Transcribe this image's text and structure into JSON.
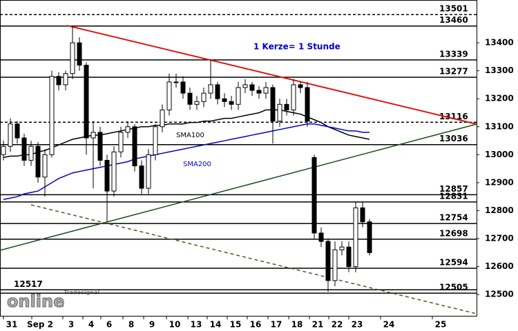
{
  "chart_data": {
    "type": "candlestick",
    "annotation": "1 Kerze= 1 Stunde",
    "logo_small": "Tradesignal",
    "logo_big": "online",
    "x_labels": [
      "31",
      "Sep 2",
      "3",
      "4",
      "6",
      "8",
      "9",
      "10",
      "13",
      "14",
      "15",
      "16",
      "17",
      "18",
      "21",
      "22",
      "23",
      "24",
      "25"
    ],
    "ylim": [
      12424,
      13553
    ],
    "yticks": [
      12500,
      12600,
      12700,
      12800,
      12900,
      13000,
      13100,
      13200,
      13300,
      13400
    ],
    "up_color": "#ffffff",
    "down_color": "#000000",
    "open": [
      13000,
      13030,
      13110,
      13060,
      12980,
      13030,
      12920,
      13000,
      13280,
      13250,
      13290,
      13400,
      13320,
      13060,
      13080,
      12980,
      12870,
      13010,
      13080,
      13100,
      12960,
      12880,
      13000,
      13100,
      13160,
      13260,
      13260,
      13220,
      13180,
      13190,
      13220,
      13250,
      13200,
      13190,
      13180,
      13240,
      13250,
      13230,
      13220,
      13240,
      13120,
      13180,
      13160,
      13250,
      13240,
      12990,
      12720,
      12690,
      12550,
      12660,
      12670,
      12600,
      12810,
      12760
    ],
    "high": [
      13050,
      13130,
      13120,
      13075,
      13050,
      13045,
      13020,
      13300,
      13295,
      13300,
      13460,
      13420,
      13330,
      13120,
      13100,
      13000,
      13030,
      13100,
      13120,
      13110,
      12980,
      13020,
      13110,
      13180,
      13290,
      13290,
      13280,
      13240,
      13210,
      13240,
      13340,
      13260,
      13220,
      13210,
      13260,
      13270,
      13260,
      13245,
      13260,
      13250,
      13200,
      13200,
      13270,
      13260,
      13260,
      13000,
      12740,
      12700,
      12690,
      12690,
      12690,
      12830,
      12830,
      12770
    ],
    "low": [
      12980,
      13010,
      13040,
      12960,
      12960,
      12900,
      12850,
      12990,
      13230,
      13230,
      13270,
      13300,
      13000,
      12880,
      12960,
      12760,
      12850,
      12990,
      13060,
      12940,
      12860,
      12860,
      12980,
      13080,
      13140,
      13240,
      13200,
      13160,
      13160,
      13170,
      13200,
      13180,
      13170,
      13160,
      13160,
      13220,
      13210,
      13200,
      13200,
      13040,
      13100,
      13140,
      13140,
      13220,
      13100,
      12700,
      12670,
      12510,
      12530,
      12640,
      12580,
      12580,
      12740,
      12640
    ],
    "close": [
      13030,
      13110,
      13060,
      12980,
      13030,
      12920,
      13000,
      13280,
      13250,
      13290,
      13400,
      13320,
      13060,
      13080,
      12980,
      12870,
      13010,
      13080,
      13100,
      12960,
      12880,
      13000,
      13100,
      13160,
      13260,
      13260,
      13220,
      13180,
      13190,
      13220,
      13250,
      13200,
      13190,
      13180,
      13240,
      13250,
      13230,
      13220,
      13240,
      13120,
      13180,
      13160,
      13250,
      13240,
      13120,
      12720,
      12690,
      12550,
      12660,
      12670,
      12600,
      12810,
      12760,
      12650
    ],
    "series": [
      {
        "name": "SMA100",
        "color": "#000000",
        "values": [
          12990,
          12995,
          12995,
          13000,
          13000,
          13010,
          13015,
          13025,
          13035,
          13045,
          13055,
          13060,
          13065,
          13070,
          13070,
          13075,
          13080,
          13085,
          13090,
          13095,
          13100,
          13100,
          13105,
          13105,
          13110,
          13110,
          13110,
          13115,
          13115,
          13120,
          13120,
          13125,
          13130,
          13130,
          13135,
          13140,
          13145,
          13150,
          13160,
          13160,
          13160,
          13155,
          13150,
          13145,
          13135,
          13125,
          13115,
          13100,
          13090,
          13080,
          13070,
          13065,
          13060,
          13055
        ]
      },
      {
        "name": "SMA200",
        "color": "#0000cc",
        "values": [
          12840,
          12845,
          12850,
          12860,
          12865,
          12870,
          12885,
          12900,
          12915,
          12925,
          12935,
          12940,
          12945,
          12950,
          12955,
          12960,
          12965,
          12970,
          12975,
          12985,
          12990,
          12995,
          13000,
          13005,
          13010,
          13015,
          13020,
          13025,
          13030,
          13035,
          13040,
          13045,
          13050,
          13055,
          13060,
          13065,
          13070,
          13075,
          13080,
          13085,
          13090,
          13095,
          13100,
          13105,
          13110,
          13110,
          13105,
          13100,
          13095,
          13090,
          13085,
          13085,
          13080,
          13080
        ]
      }
    ],
    "levels": [
      {
        "value": 13501,
        "dashed": true
      },
      {
        "value": 13460,
        "dashed": false
      },
      {
        "value": 13339,
        "dashed": false
      },
      {
        "value": 13277,
        "dashed": false
      },
      {
        "value": 13116,
        "dashed": true
      },
      {
        "value": 13036,
        "dashed": false
      },
      {
        "value": 12857,
        "dashed": false
      },
      {
        "value": 12831,
        "dashed": false
      },
      {
        "value": 12754,
        "dashed": false
      },
      {
        "value": 12698,
        "dashed": false
      },
      {
        "value": 12594,
        "dashed": false
      },
      {
        "value": 12505,
        "dashed": false
      },
      {
        "value": 12517,
        "dashed": false,
        "left": true
      }
    ]
  }
}
